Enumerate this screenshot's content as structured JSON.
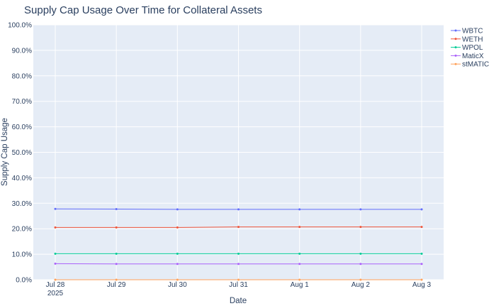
{
  "chart_data": {
    "type": "line",
    "title": "Supply Cap Usage Over Time for Collateral Assets",
    "xlabel": "Date",
    "ylabel": "Supply Cap Usage",
    "x": [
      "2025-07-28",
      "2025-07-29",
      "2025-07-30",
      "2025-07-31",
      "2025-08-01",
      "2025-08-02",
      "2025-08-03"
    ],
    "x_tick_labels": [
      "Jul 28",
      "Jul 29",
      "Jul 30",
      "Jul 31",
      "Aug 1",
      "Aug 2",
      "Aug 3"
    ],
    "x_tick_sublabel": "2025",
    "ylim": [
      0,
      1
    ],
    "y_ticks": [
      0,
      0.1,
      0.2,
      0.3,
      0.4,
      0.5,
      0.6,
      0.7,
      0.8,
      0.9,
      1.0
    ],
    "y_tick_labels": [
      "0.0%",
      "10.0%",
      "20.0%",
      "30.0%",
      "40.0%",
      "50.0%",
      "60.0%",
      "70.0%",
      "80.0%",
      "90.0%",
      "100.0%"
    ],
    "grid": true,
    "legend_position": "top-right",
    "series": [
      {
        "name": "WBTC",
        "color": "#636efa",
        "values": [
          0.278,
          0.277,
          0.276,
          0.276,
          0.276,
          0.276,
          0.276
        ]
      },
      {
        "name": "WETH",
        "color": "#ef553b",
        "values": [
          0.205,
          0.205,
          0.205,
          0.207,
          0.207,
          0.207,
          0.207
        ]
      },
      {
        "name": "WPOL",
        "color": "#00cc96",
        "values": [
          0.102,
          0.102,
          0.102,
          0.102,
          0.102,
          0.102,
          0.102
        ]
      },
      {
        "name": "MaticX",
        "color": "#ab63fa",
        "values": [
          0.063,
          0.062,
          0.062,
          0.062,
          0.062,
          0.062,
          0.062
        ]
      },
      {
        "name": "stMATIC",
        "color": "#ffa15a",
        "values": [
          0.0,
          0.0,
          0.0,
          0.0,
          0.0,
          0.0,
          0.0
        ]
      }
    ]
  }
}
